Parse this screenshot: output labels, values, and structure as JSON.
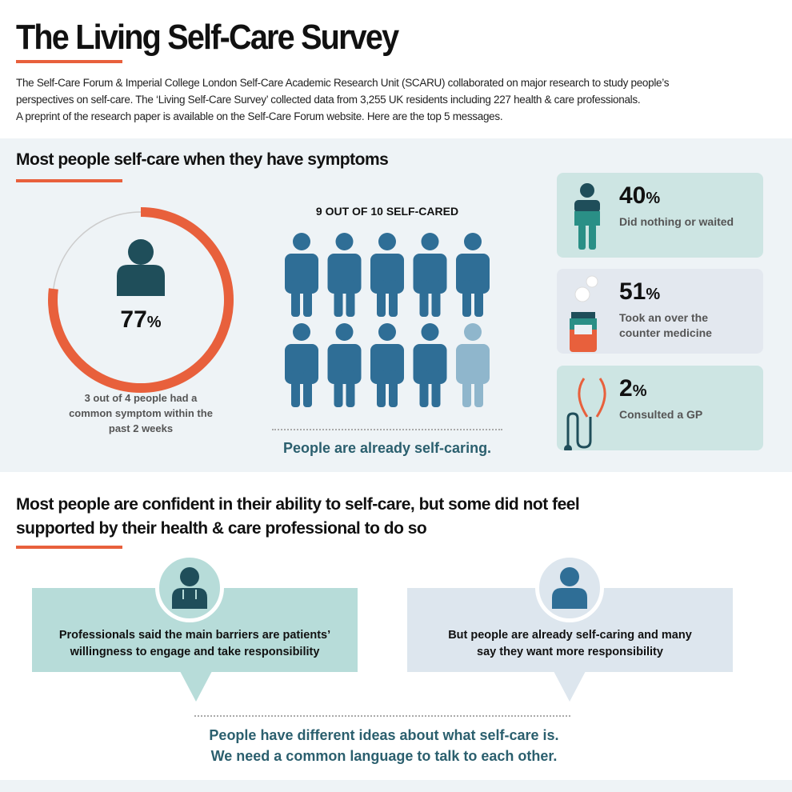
{
  "title": "The Living Self-Care Survey",
  "intro": [
    "The Self-Care Forum & Imperial College London Self-Care Academic Research Unit (SCARU) collaborated on major research to study people’s",
    "perspectives on self-care. The ‘Living Self-Care Survey’ collected data from 3,255 UK residents including 227 health & care professionals.",
    "A preprint of the research paper is available on the Self-Care Forum website. Here are the top 5 messages."
  ],
  "section1": {
    "heading": "Most people self-care when they have symptoms",
    "donut": {
      "value": 77,
      "label": "77",
      "unit": "%",
      "caption": [
        "3 out of 4 people had a",
        "common symptom within the",
        "past 2 weeks"
      ]
    },
    "grid": {
      "title": "9 OUT OF 10 SELF-CARED",
      "filled": 9,
      "total": 10,
      "footer": "People are already self-caring."
    },
    "cards": [
      {
        "value": "40",
        "unit": "%",
        "label": [
          "Did nothing or waited"
        ],
        "icon": "person-icon"
      },
      {
        "value": "51",
        "unit": "%",
        "label": [
          "Took an over the",
          "counter medicine"
        ],
        "icon": "medicine-icon"
      },
      {
        "value": "2",
        "unit": "%",
        "label": [
          "Consulted a GP"
        ],
        "icon": "stethoscope-icon"
      }
    ]
  },
  "section2": {
    "heading": [
      "Most people are confident in their ability to self-care, but some did not feel",
      "supported by their health & care professional to do so"
    ],
    "left": [
      "Professionals said the main barriers are patients’",
      "willingness to engage and take responsibility"
    ],
    "right": [
      "But people are already self-caring and many",
      "say they want more responsibility"
    ],
    "footer": [
      "People have different ideas about what self-care is.",
      "We need a common language to talk to each other."
    ]
  },
  "colors": {
    "accent": "#e8603c",
    "teal": "#2b5f6e",
    "person": "#2f6e96",
    "person_light": "#8fb6cc"
  }
}
